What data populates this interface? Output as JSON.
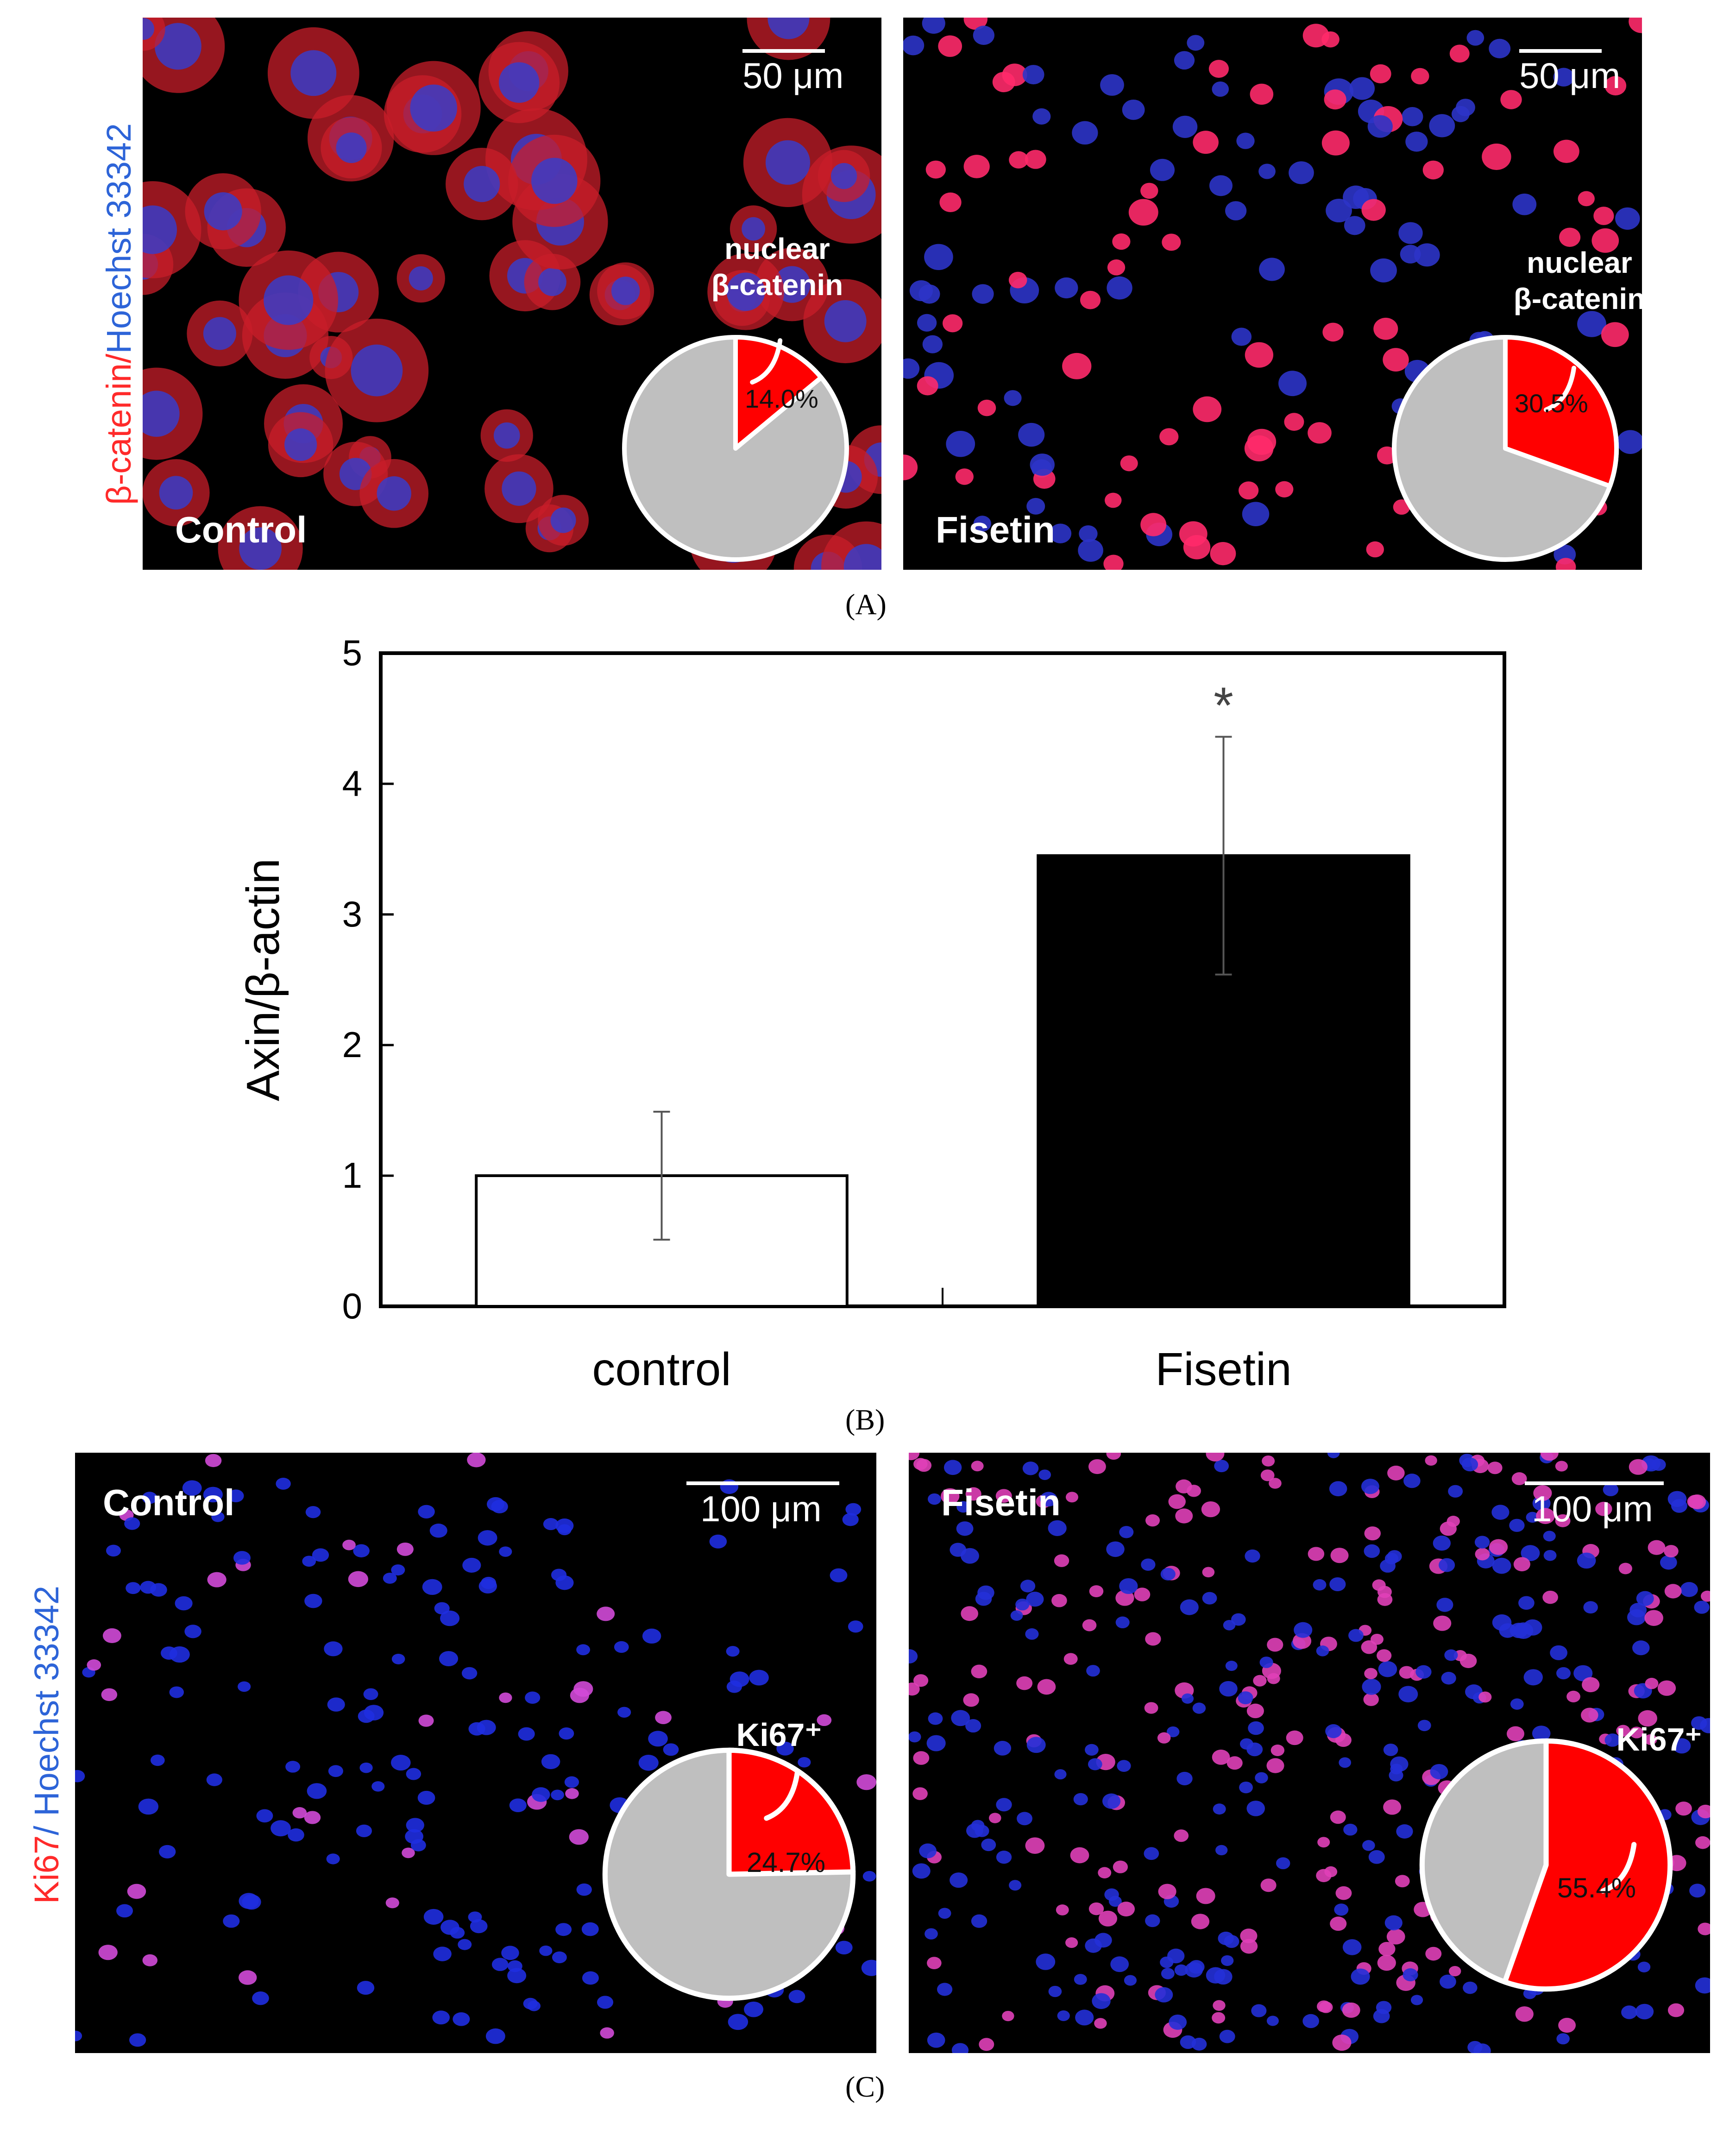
{
  "panel_a": {
    "label": "(A)",
    "vertical_label_red": "β-catenin",
    "vertical_label_slash": "/",
    "vertical_label_blue": "Hoechst 33342",
    "left": {
      "condition": "Control",
      "scale_text": "50 μm",
      "pie_title_line1": "nuclear",
      "pie_title_line2": "β-catenin",
      "percent_label": "14.0%",
      "percent_value": 14.0
    },
    "right": {
      "condition": "Fisetin",
      "scale_text": "50 μm",
      "pie_title_line1": "nuclear",
      "pie_title_line2": "β-catenin",
      "percent_label": "30.5%",
      "percent_value": 30.5
    }
  },
  "panel_b": {
    "label": "(B)"
  },
  "panel_c": {
    "label": "(C)",
    "vertical_label_red": "Ki67",
    "vertical_label_slash": "/",
    "vertical_label_blue": " Hoechst 33342",
    "left": {
      "condition": "Control",
      "scale_text": "100 μm",
      "pie_title": "Ki67⁺",
      "percent_label": "24.7%",
      "percent_value": 24.7
    },
    "right": {
      "condition": "Fisetin",
      "scale_text": "100 μm",
      "pie_title": "Ki67⁺",
      "percent_label": "55.4%",
      "percent_value": 55.4
    }
  },
  "colors": {
    "positive": "#ff0000",
    "negative": "#bfbfbf",
    "nucleus": "#2233cc",
    "stain": "#ff2a6a"
  },
  "chart_data": {
    "type": "bar",
    "categories": [
      "control",
      "Fisetin"
    ],
    "values": [
      1.0,
      3.45
    ],
    "error": [
      0.49,
      0.91
    ],
    "bar_colors": [
      "#ffffff",
      "#000000"
    ],
    "significance": [
      "",
      "*"
    ],
    "ylabel": "Axin/β-actin",
    "ylim": [
      0,
      5
    ],
    "yticks": [
      "0",
      "1",
      "2",
      "3",
      "4",
      "5"
    ]
  }
}
